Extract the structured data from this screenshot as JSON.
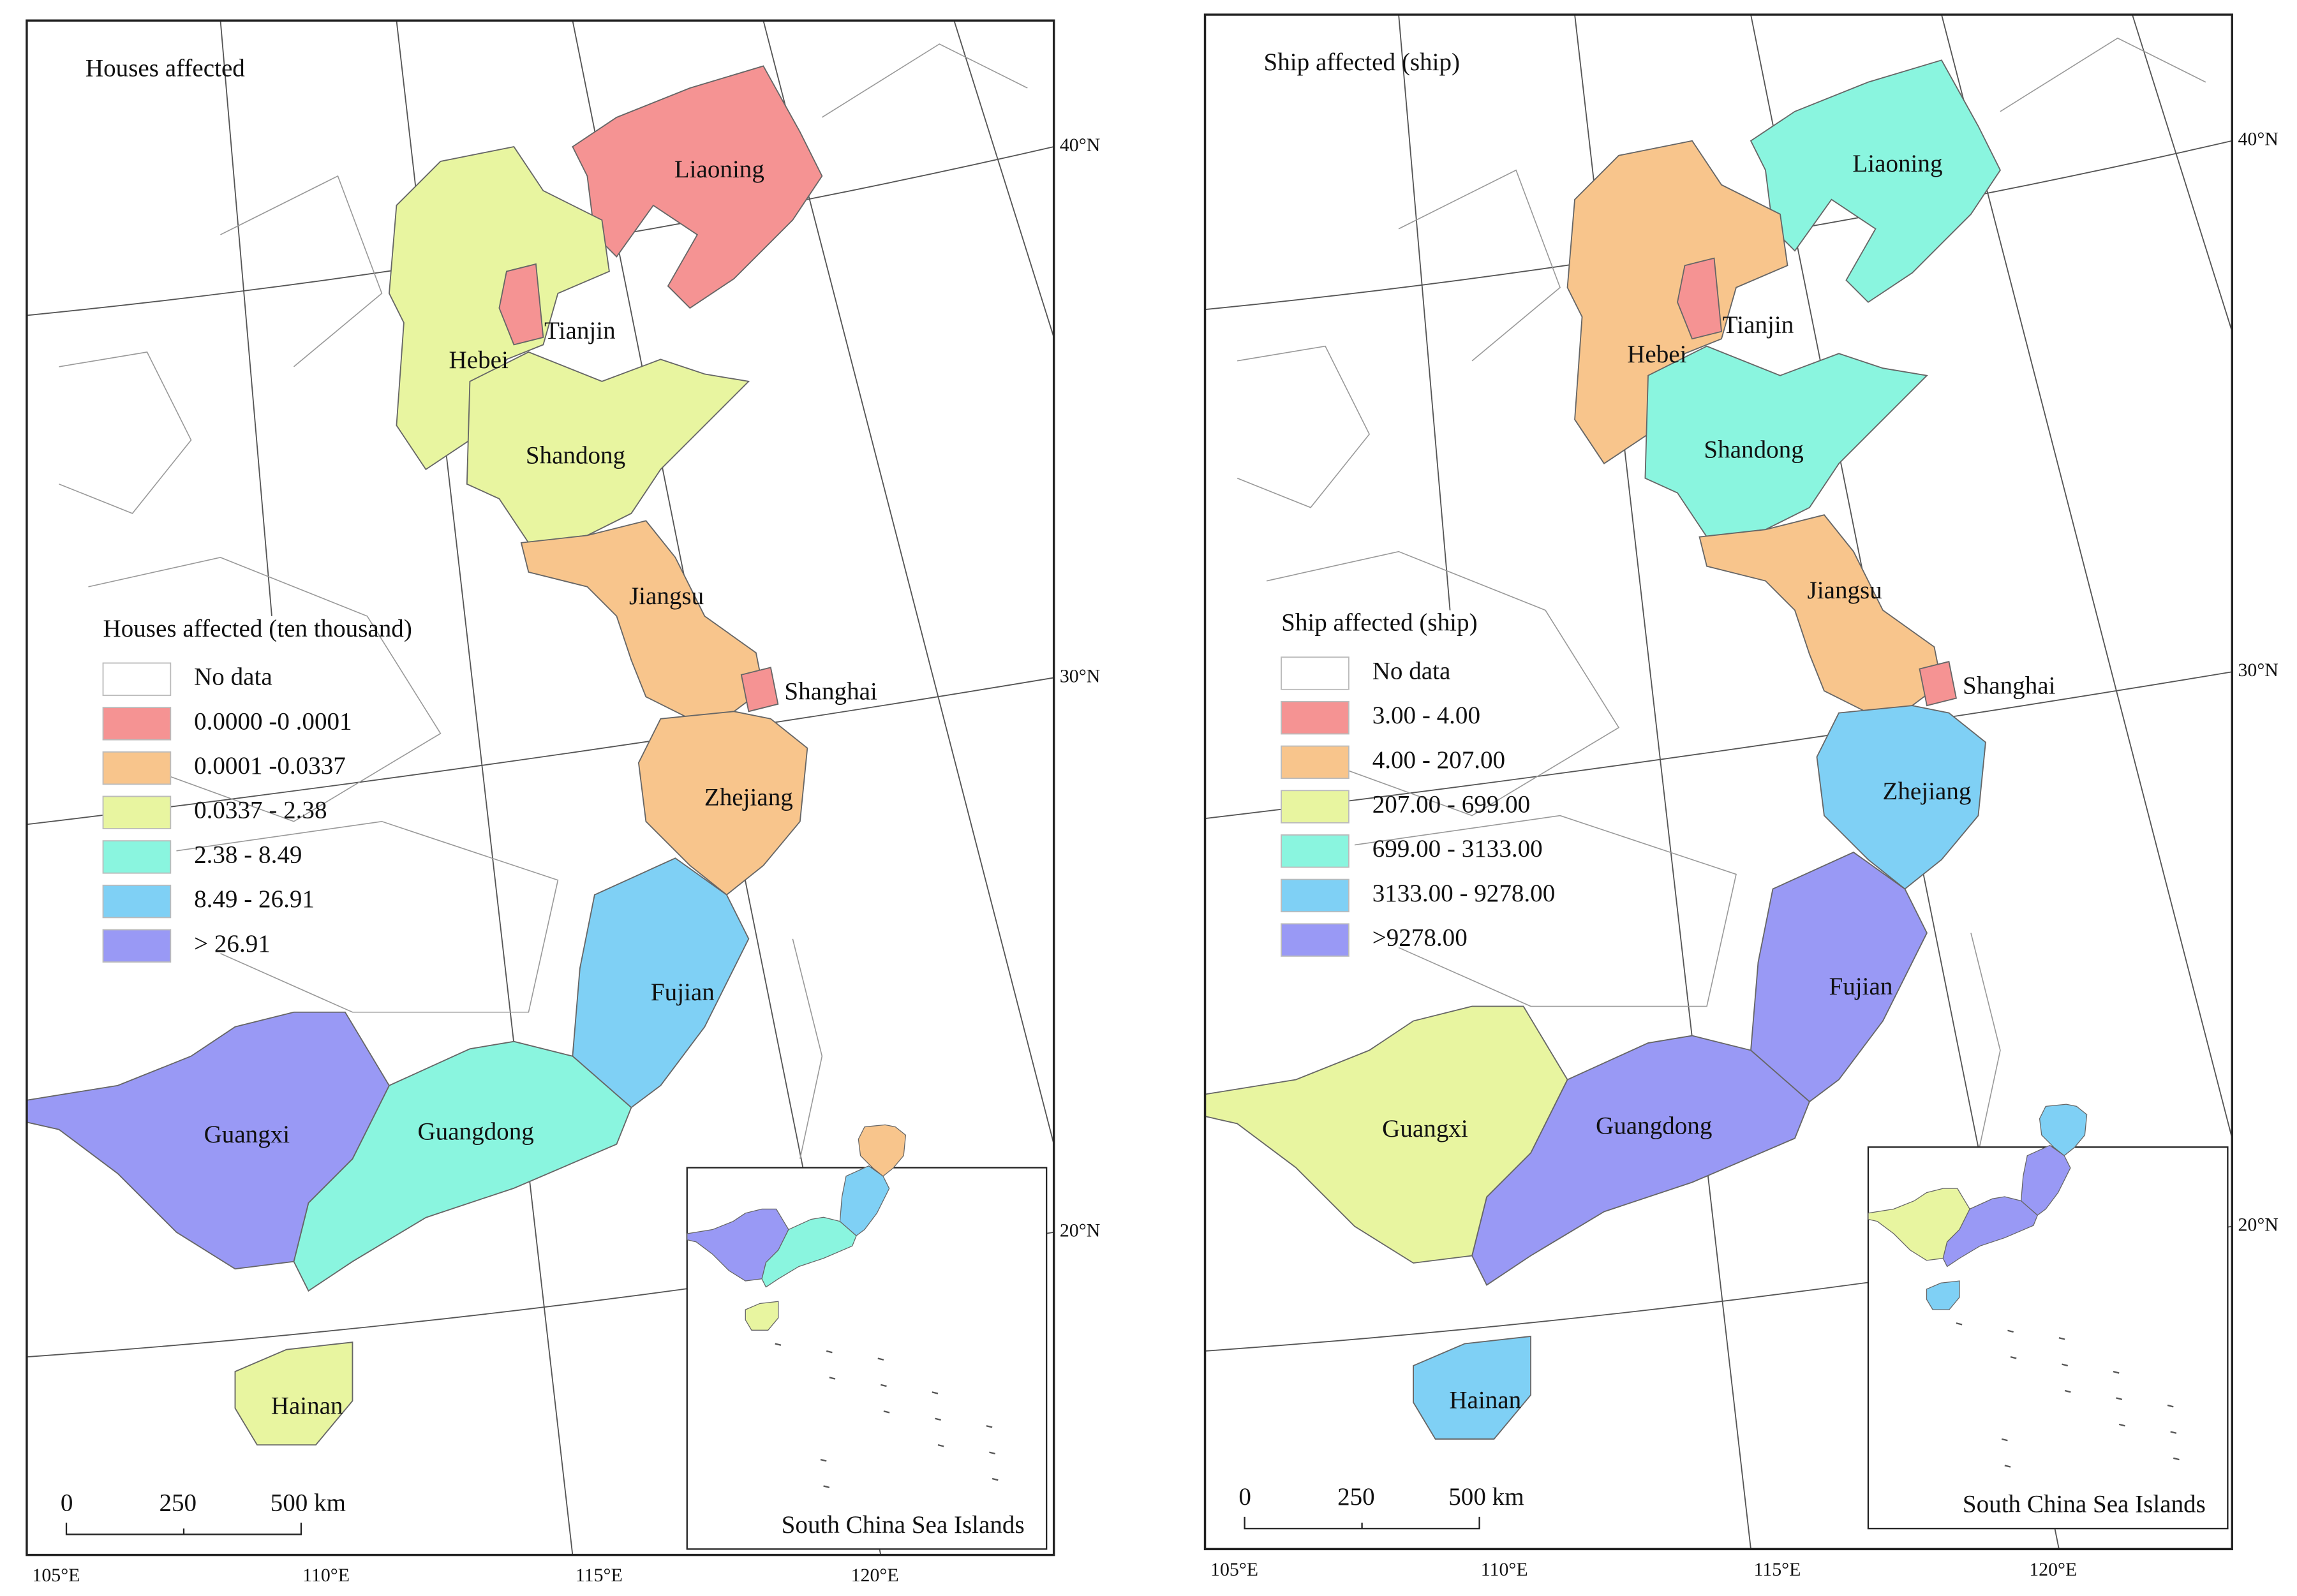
{
  "maps": [
    {
      "title": "Houses affected",
      "legend": {
        "title": "Houses affected (ten thousand)",
        "items": [
          {
            "label": "No data",
            "color": "#ffffff"
          },
          {
            "label": "0.0000 -0 .0001",
            "color": "#f59393"
          },
          {
            "label": "0.0001 -0.0337",
            "color": "#f8c58c"
          },
          {
            "label": "0.0337 - 2.38",
            "color": "#e8f5a0"
          },
          {
            "label": "2.38 - 8.49",
            "color": "#8af5df"
          },
          {
            "label": "8.49 - 26.91",
            "color": "#7fd0f5"
          },
          {
            "label": "> 26.91",
            "color": "#9999f5"
          }
        ]
      },
      "provinces": [
        {
          "name": "Liaoning",
          "color": "#f59393"
        },
        {
          "name": "Hebei",
          "color": "#e8f5a0"
        },
        {
          "name": "Tianjin",
          "color": "#f59393"
        },
        {
          "name": "Shandong",
          "color": "#e8f5a0"
        },
        {
          "name": "Jiangsu",
          "color": "#f8c58c"
        },
        {
          "name": "Shanghai",
          "color": "#f59393"
        },
        {
          "name": "Zhejiang",
          "color": "#f8c58c"
        },
        {
          "name": "Fujian",
          "color": "#7fd0f5"
        },
        {
          "name": "Guangdong",
          "color": "#8af5df"
        },
        {
          "name": "Guangxi",
          "color": "#9999f5"
        },
        {
          "name": "Hainan",
          "color": "#e8f5a0"
        }
      ],
      "latitude_labels": [
        "40°N",
        "30°N",
        "20°N"
      ],
      "longitude_labels": [
        "105°E",
        "110°E",
        "115°E",
        "120°E"
      ],
      "scale_bar": [
        "0",
        "250",
        "500 km"
      ],
      "inset_label": "South China Sea Islands"
    },
    {
      "title": "Ship affected (ship)",
      "legend": {
        "title": "Ship affected (ship)",
        "items": [
          {
            "label": "No data",
            "color": "#ffffff"
          },
          {
            "label": "3.00 - 4.00",
            "color": "#f59393"
          },
          {
            "label": "4.00 - 207.00",
            "color": "#f8c58c"
          },
          {
            "label": "207.00 - 699.00",
            "color": "#e8f5a0"
          },
          {
            "label": "699.00 - 3133.00",
            "color": "#8af5df"
          },
          {
            "label": "3133.00 - 9278.00",
            "color": "#7fd0f5"
          },
          {
            "label": ">9278.00",
            "color": "#9999f5"
          }
        ]
      },
      "provinces": [
        {
          "name": "Liaoning",
          "color": "#8af5df"
        },
        {
          "name": "Hebei",
          "color": "#f8c58c"
        },
        {
          "name": "Tianjin",
          "color": "#f59393"
        },
        {
          "name": "Shandong",
          "color": "#8af5df"
        },
        {
          "name": "Jiangsu",
          "color": "#f8c58c"
        },
        {
          "name": "Shanghai",
          "color": "#f59393"
        },
        {
          "name": "Zhejiang",
          "color": "#7fd0f5"
        },
        {
          "name": "Fujian",
          "color": "#9999f5"
        },
        {
          "name": "Guangdong",
          "color": "#9999f5"
        },
        {
          "name": "Guangxi",
          "color": "#e8f5a0"
        },
        {
          "name": "Hainan",
          "color": "#7fd0f5"
        }
      ],
      "latitude_labels": [
        "40°N",
        "30°N",
        "20°N"
      ],
      "longitude_labels": [
        "105°E",
        "110°E",
        "115°E",
        "120°E"
      ],
      "scale_bar": [
        "0",
        "250",
        "500 km"
      ],
      "inset_label": "South China Sea Islands"
    }
  ]
}
